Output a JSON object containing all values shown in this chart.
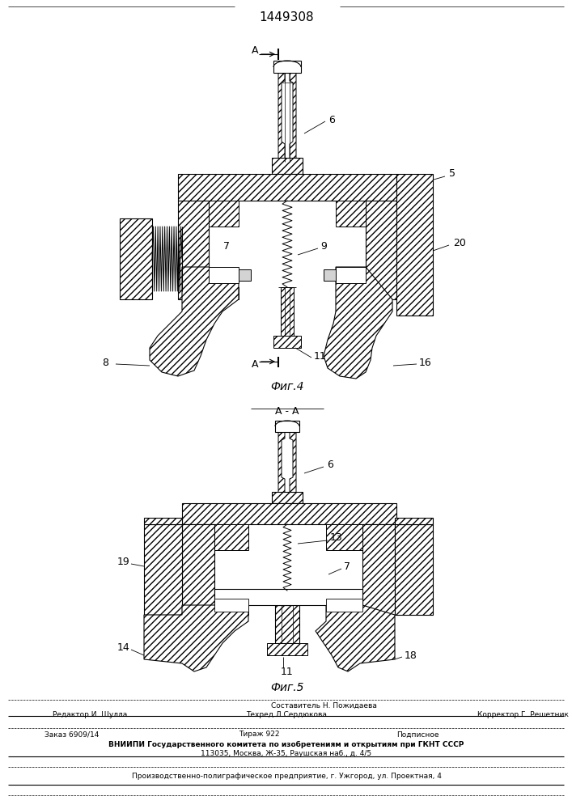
{
  "patent_number": "1449308",
  "fig4_caption": "Фиг.4",
  "fig5_caption": "Фиг.5",
  "bg_color": "#ffffff",
  "footer": {
    "line1": "Составитель Н. Пожидаева",
    "line2_left": "Редактор И. Шулла",
    "line2_mid": "Техред Л.Сердюкова",
    "line2_right": "Корректор Г. Решетник",
    "line3_left": "Заказ 6909/14",
    "line3_mid": "Тираж 922",
    "line3_right": "Подписное",
    "line4": "ВНИИПИ Государственного комитета по изобретениям и открытиям при ГКНТ СССР",
    "line5": "113035, Москва, Ж-35, Раушская наб., д. 4/5",
    "line6": "Производственно-полиграфическое предприятие, г. Ужгород, ул. Проектная, 4"
  }
}
